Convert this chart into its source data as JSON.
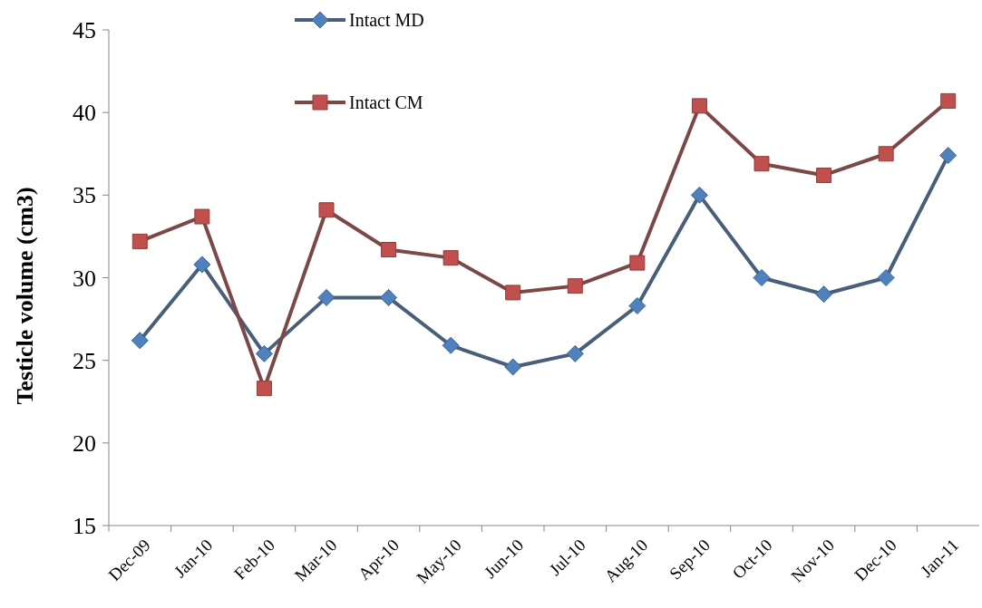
{
  "chart_data": {
    "type": "line",
    "ylabel": "Testicle volume (cm3)",
    "categories": [
      "Dec-09",
      "Jan-10",
      "Feb-10",
      "Mar-10",
      "Apr-10",
      "May-10",
      "Jun-10",
      "Jul-10",
      "Aug-10",
      "Sep-10",
      "Oct-10",
      "Nov-10",
      "Dec-10",
      "Jan-11"
    ],
    "series": [
      {
        "name": "Intact MD",
        "color": "#4f81bd",
        "marker": "diamond",
        "values": [
          26.2,
          30.8,
          25.4,
          28.8,
          28.8,
          25.9,
          24.6,
          25.4,
          28.3,
          35.0,
          30.0,
          29.0,
          30.0,
          37.4
        ]
      },
      {
        "name": "Intact CM",
        "color": "#c0504d",
        "marker": "square",
        "values": [
          32.2,
          33.7,
          23.3,
          34.1,
          31.7,
          31.2,
          29.1,
          29.5,
          30.9,
          40.4,
          36.9,
          36.2,
          37.5,
          40.7
        ]
      }
    ],
    "ylim": [
      15,
      45
    ],
    "yticks": [
      15,
      20,
      25,
      30,
      35,
      40,
      45
    ],
    "grid": false,
    "legend": "top"
  }
}
